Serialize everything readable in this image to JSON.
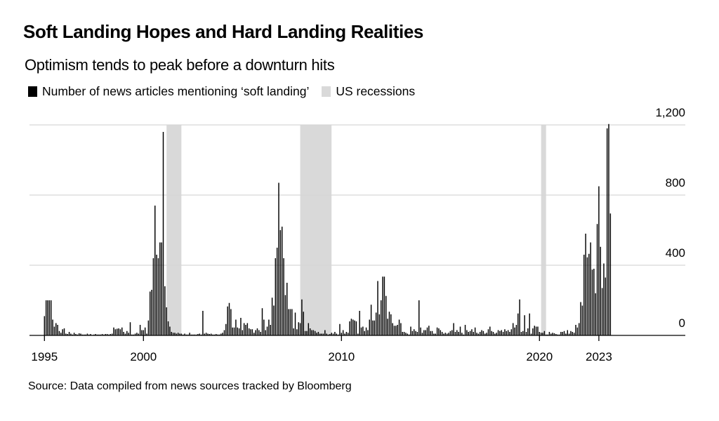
{
  "title": "Soft Landing Hopes and Hard Landing Realities",
  "subtitle": "Optimism tends to peak before a downturn hits",
  "legend": [
    {
      "label": "Number of news articles mentioning ‘soft landing’",
      "color": "#000000"
    },
    {
      "label": "US recessions",
      "color": "#d9d9d9"
    }
  ],
  "source": "Source: Data compiled from news sources tracked by Bloomberg",
  "chart_data": {
    "type": "bar",
    "title": "Soft Landing Hopes and Hard Landing Realities",
    "xlabel": "",
    "ylabel": "",
    "frequency": "monthly",
    "ylim": [
      0,
      1200
    ],
    "yticks": [
      0,
      400,
      800,
      1200
    ],
    "ytick_labels": [
      "0",
      "400",
      "800",
      "1,200"
    ],
    "xticks": [
      1995,
      2000,
      2010,
      2020,
      2023
    ],
    "xtick_labels": [
      "1995",
      "2000",
      "2010",
      "2020",
      "2023"
    ],
    "grid": "horizontal",
    "yaxis_side": "right",
    "legend_position": "top-left",
    "bar_color": "#000000",
    "recession_color": "#d9d9d9",
    "recessions": [
      [
        "2001-03",
        "2001-11"
      ],
      [
        "2007-12",
        "2009-06"
      ],
      [
        "2020-02",
        "2020-04"
      ]
    ],
    "series": [
      {
        "name": "Number of news articles mentioning ‘soft landing’",
        "values_by_year": {
          "1995": [
            110,
            200,
            200,
            200,
            200,
            90,
            50,
            70,
            60,
            25,
            15,
            35
          ],
          "1996": [
            40,
            10,
            8,
            20,
            10,
            5,
            15,
            8,
            5,
            12,
            10,
            5
          ],
          "1997": [
            5,
            5,
            10,
            5,
            8,
            3,
            5,
            8,
            5,
            5,
            5,
            8
          ],
          "1998": [
            5,
            8,
            8,
            5,
            8,
            10,
            45,
            35,
            38,
            40,
            35,
            45
          ],
          "1999": [
            20,
            10,
            25,
            15,
            75,
            5,
            5,
            10,
            15,
            10,
            60,
            30
          ],
          "2000": [
            30,
            45,
            10,
            85,
            250,
            260,
            440,
            740,
            460,
            440,
            530,
            530
          ],
          "2001": [
            1160,
            280,
            160,
            80,
            50,
            20,
            15,
            15,
            10,
            15,
            10,
            10
          ],
          "2002": [
            5,
            10,
            5,
            5,
            15,
            5,
            5,
            5,
            5,
            8,
            10,
            5
          ],
          "2003": [
            140,
            10,
            15,
            10,
            8,
            10,
            5,
            5,
            8,
            5,
            5,
            10
          ],
          "2004": [
            15,
            30,
            65,
            165,
            185,
            150,
            45,
            45,
            90,
            45,
            40,
            100
          ],
          "2005": [
            30,
            70,
            60,
            70,
            40,
            35,
            35,
            15,
            30,
            40,
            30,
            20
          ],
          "2006": [
            155,
            90,
            30,
            50,
            90,
            60,
            215,
            170,
            440,
            500,
            870,
            600
          ],
          "2007": [
            620,
            440,
            230,
            300,
            150,
            150,
            150,
            40,
            130,
            35,
            75,
            70
          ],
          "2008": [
            205,
            135,
            25,
            25,
            70,
            40,
            30,
            30,
            25,
            15,
            20,
            10
          ],
          "2009": [
            10,
            10,
            30,
            10,
            5,
            8,
            15,
            10,
            20,
            10,
            5,
            65
          ],
          "2010": [
            15,
            30,
            10,
            20,
            15,
            80,
            95,
            90,
            85,
            80,
            10,
            140
          ],
          "2011": [
            45,
            50,
            25,
            45,
            30,
            90,
            175,
            85,
            85,
            130,
            310,
            120
          ],
          "2012": [
            200,
            335,
            335,
            225,
            95,
            135,
            120,
            70,
            55,
            55,
            60,
            90
          ],
          "2013": [
            70,
            20,
            20,
            15,
            10,
            5,
            50,
            25,
            35,
            25,
            20,
            200
          ],
          "2014": [
            45,
            15,
            30,
            30,
            45,
            55,
            25,
            25,
            10,
            10,
            45,
            40
          ],
          "2015": [
            30,
            20,
            10,
            15,
            10,
            15,
            25,
            30,
            70,
            20,
            30,
            20
          ],
          "2016": [
            50,
            15,
            5,
            60,
            30,
            20,
            25,
            35,
            20,
            45,
            15,
            10
          ],
          "2017": [
            20,
            30,
            25,
            10,
            15,
            35,
            50,
            25,
            20,
            10,
            15,
            30
          ],
          "2018": [
            25,
            30,
            20,
            35,
            25,
            30,
            20,
            35,
            70,
            45,
            60,
            125
          ],
          "2019": [
            205,
            20,
            25,
            115,
            20,
            40,
            125,
            10,
            40,
            55,
            50,
            50
          ],
          "2020": [
            20,
            15,
            15,
            25,
            5,
            5,
            20,
            10,
            15,
            12,
            8,
            5
          ],
          "2021": [
            5,
            20,
            20,
            25,
            10,
            30,
            10,
            25,
            20,
            15,
            60,
            45
          ],
          "2022": [
            70,
            190,
            170,
            460,
            580,
            445,
            465,
            530,
            375,
            380,
            240,
            635
          ],
          "2023": [
            850,
            505,
            270,
            410,
            330,
            1180,
            1205,
            695
          ]
        }
      }
    ]
  }
}
